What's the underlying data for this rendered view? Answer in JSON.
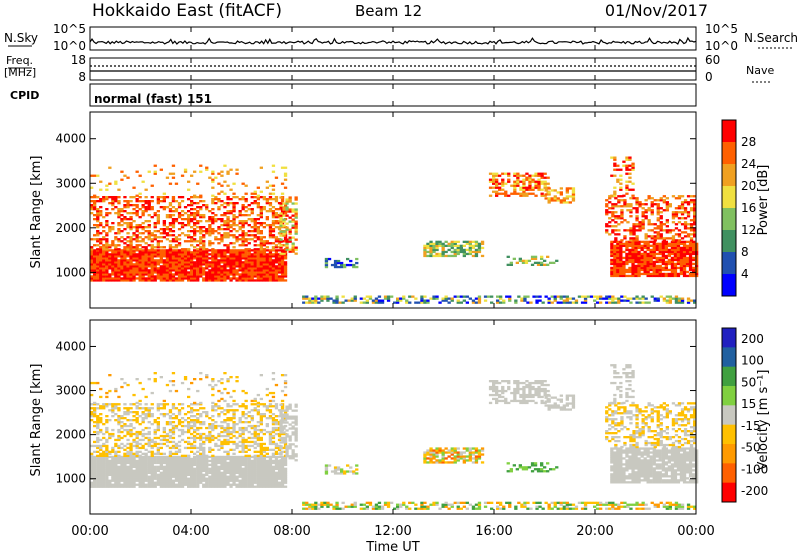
{
  "header": {
    "title": "Hokkaido East (fitACF)",
    "beam": "Beam 12",
    "date": "01/Nov/2017"
  },
  "noise_panel": {
    "left_label": "N.Sky",
    "right_label": "N.Search",
    "left_ticks": [
      "10^5",
      "10^0"
    ],
    "right_ticks": [
      "10^5",
      "10^0"
    ]
  },
  "freq_panel": {
    "left_label_line1": "Freq.",
    "left_label_line2": "[MHz]",
    "right_label": "Nave",
    "left_ticks": [
      "18",
      "8"
    ],
    "right_ticks": [
      "60",
      "0"
    ]
  },
  "cpid_panel": {
    "label": "CPID",
    "text": "normal (fast) 151"
  },
  "colors": {
    "power": [
      "#0000ff",
      "#2050b0",
      "#409060",
      "#80c060",
      "#f0e040",
      "#f0a020",
      "#ff6000",
      "#ff0000"
    ],
    "velocity": [
      "#ff0000",
      "#ff6000",
      "#ff9a00",
      "#ffc000",
      "#c8c8c0",
      "#80d040",
      "#40a040",
      "#2060a0",
      "#2020c0"
    ]
  },
  "chart_data": [
    {
      "type": "heatmap",
      "name": "power",
      "ylabel": "Slant Range [km]",
      "ylim": [
        200,
        4600
      ],
      "xlim": [
        0,
        24
      ],
      "yticks": [
        "1000",
        "2000",
        "3000",
        "4000"
      ],
      "colorbar_label": "Power [dB]",
      "colorbar_ticks": [
        "4",
        "8",
        "12",
        "16",
        "20",
        "24",
        "28"
      ],
      "colorbar_range": [
        0,
        32
      ]
    },
    {
      "type": "heatmap",
      "name": "velocity",
      "ylabel": "Slant Range [km]",
      "ylim": [
        200,
        4600
      ],
      "xlim": [
        0,
        24
      ],
      "yticks": [
        "1000",
        "2000",
        "3000",
        "4000"
      ],
      "colorbar_label": "Velocity [m s⁻¹]",
      "colorbar_ticks": [
        "200",
        "100",
        "50",
        "15",
        "-15",
        "-50",
        "-100",
        "-200"
      ],
      "colorbar_range": [
        -250,
        250
      ]
    }
  ],
  "x_axis": {
    "ticks": [
      "00:00",
      "04:00",
      "08:00",
      "12:00",
      "16:00",
      "20:00",
      "00:00"
    ],
    "label": "Time UT"
  }
}
